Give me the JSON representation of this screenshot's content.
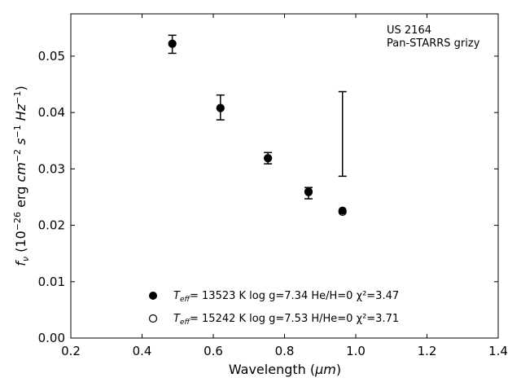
{
  "chart_data": {
    "type": "scatter",
    "annotation": [
      "US 2164",
      "Pan-STARRS grizy"
    ],
    "xlabel_prefix": "Wavelength (",
    "xlabel_unit": "μm",
    "xlabel_suffix": ")",
    "ylabel": "f_ν (10^-26 erg cm^-2 s^-1 Hz^-1)",
    "xlim": [
      0.2,
      1.4
    ],
    "ylim": [
      0.0,
      0.0575
    ],
    "x_ticks": [
      0.2,
      0.4,
      0.6,
      0.8,
      1.0,
      1.2,
      1.4
    ],
    "x_tick_labels": [
      "0.2",
      "0.4",
      "0.6",
      "0.8",
      "1.0",
      "1.2",
      "1.4"
    ],
    "y_ticks": [
      0.0,
      0.01,
      0.02,
      0.03,
      0.04,
      0.05
    ],
    "y_tick_labels": [
      "0.00",
      "0.01",
      "0.02",
      "0.03",
      "0.04",
      "0.05"
    ],
    "grid": false,
    "legend_position": "bottom-center",
    "observed": {
      "x": [
        0.4849,
        0.6201,
        0.7535,
        0.8674,
        0.9628
      ],
      "y": [
        0.0521,
        0.0409,
        0.0319,
        0.0257,
        0.0362
      ],
      "yerr": [
        0.0016,
        0.0022,
        0.001,
        0.001,
        0.0075
      ]
    },
    "series": [
      {
        "marker": "filled",
        "legend_text": "= 13523 K  log g=7.34  He/H=0  χ²=3.47",
        "x": [
          0.4849,
          0.6201,
          0.7535,
          0.8674,
          0.9628
        ],
        "y": [
          0.0522,
          0.0408,
          0.0319,
          0.026,
          0.0226
        ]
      },
      {
        "marker": "open",
        "legend_text": "= 15242 K  log g=7.53  H/He=0  χ²=3.71",
        "x": [
          0.4849,
          0.6201,
          0.7535,
          0.8674,
          0.9628
        ],
        "y": [
          0.0522,
          0.0408,
          0.0319,
          0.0259,
          0.0224
        ]
      }
    ],
    "colors": {
      "marker": "#000000",
      "axes": "#000000"
    }
  }
}
